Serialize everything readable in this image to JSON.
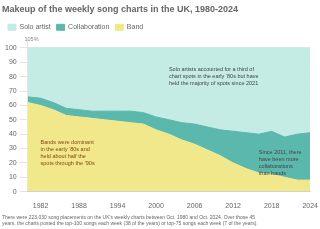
{
  "chart_data": {
    "type": "area",
    "title": "Makeup of the weekly song charts in the UK, 1980-2024",
    "stacked": true,
    "x": [
      1980,
      1982,
      1984,
      1986,
      1988,
      1990,
      1992,
      1994,
      1996,
      1998,
      2000,
      2002,
      2004,
      2006,
      2008,
      2010,
      2012,
      2014,
      2016,
      2018,
      2020,
      2022,
      2024
    ],
    "series": [
      {
        "name": "Band",
        "color": "#f0e88a",
        "values": [
          62,
          60,
          57,
          53,
          52,
          51,
          50,
          49,
          48,
          47,
          43,
          40,
          36,
          33,
          29,
          25,
          20,
          16,
          13,
          12,
          10,
          8,
          8
        ]
      },
      {
        "name": "Collaboration",
        "color": "#5ab8ac",
        "values": [
          4,
          5,
          5,
          5,
          5,
          5,
          6,
          7,
          8,
          8,
          9,
          10,
          12,
          14,
          16,
          18,
          22,
          25,
          27,
          30,
          28,
          32,
          33
        ]
      },
      {
        "name": "Solo artist",
        "color": "#c5ebe5",
        "values": [
          34,
          35,
          38,
          42,
          43,
          44,
          44,
          44,
          44,
          45,
          48,
          50,
          52,
          53,
          55,
          57,
          58,
          59,
          60,
          58,
          62,
          60,
          59
        ]
      }
    ],
    "xlim": [
      1980,
      2024
    ],
    "xticks": [
      1982,
      1988,
      1994,
      2000,
      2006,
      2012,
      2018,
      2024
    ],
    "ylim": [
      0,
      105
    ],
    "yticks": [
      0,
      10,
      20,
      30,
      40,
      50,
      60,
      70,
      80,
      90,
      100
    ],
    "grid": true,
    "legend": "top",
    "annotations": [
      {
        "text": "105%",
        "x": 1979.5,
        "y": 104,
        "color": "#888888"
      },
      {
        "text": "Solo artists accounted for a third of\nchart spots in the early ‘80s but have\nheld the majority of spots since 2021",
        "x": 2002,
        "y": 80,
        "color": "#444444"
      },
      {
        "text": "Bands were dominant\nin the early ‘80s and\nheld about half the\nspots through the ’90s",
        "x": 1982,
        "y": 27,
        "color": "#8B4513"
      },
      {
        "text": "Since 2011, there\nhave been more\ncollaborations\nthan bands",
        "x": 2016,
        "y": 20,
        "color": "#444444"
      }
    ],
    "footnote": "There were 223,030 song placements on the UK's weekly charts between Oct. 1980 and Oct. 2024. Over those 45\nyears, the charts posted the top-100 songs each week (38 of the years) or top-75 songs each week (7 of the years)."
  }
}
